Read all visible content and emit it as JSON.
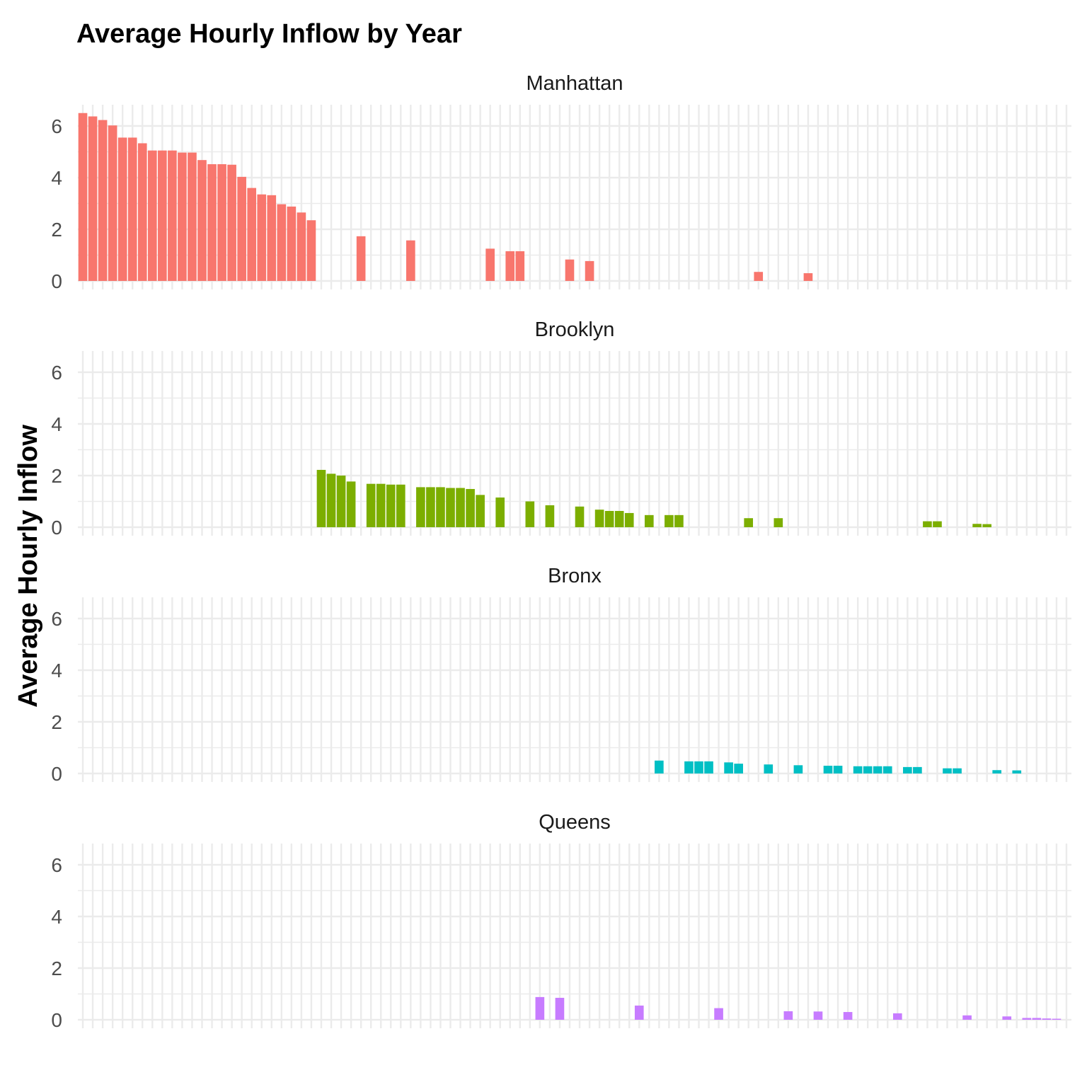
{
  "chart_data": {
    "type": "bar",
    "title": "Average Hourly Inflow by Year",
    "xlabel": "",
    "ylabel": "Average Hourly Inflow",
    "ylim": [
      0,
      6.8
    ],
    "yticks": [
      0,
      2,
      4,
      6
    ],
    "grid": true,
    "legend": "none",
    "x_slot_count": 100,
    "facets": [
      {
        "name": "Manhattan",
        "color": "#F8766D",
        "bars": [
          {
            "i": 0,
            "v": 6.5
          },
          {
            "i": 1,
            "v": 6.37
          },
          {
            "i": 2,
            "v": 6.23
          },
          {
            "i": 3,
            "v": 6.02
          },
          {
            "i": 4,
            "v": 5.55
          },
          {
            "i": 5,
            "v": 5.55
          },
          {
            "i": 6,
            "v": 5.33
          },
          {
            "i": 7,
            "v": 5.05
          },
          {
            "i": 8,
            "v": 5.05
          },
          {
            "i": 9,
            "v": 5.05
          },
          {
            "i": 10,
            "v": 4.97
          },
          {
            "i": 11,
            "v": 4.97
          },
          {
            "i": 12,
            "v": 4.68
          },
          {
            "i": 13,
            "v": 4.52
          },
          {
            "i": 14,
            "v": 4.52
          },
          {
            "i": 15,
            "v": 4.5
          },
          {
            "i": 16,
            "v": 4.03
          },
          {
            "i": 17,
            "v": 3.6
          },
          {
            "i": 18,
            "v": 3.35
          },
          {
            "i": 19,
            "v": 3.32
          },
          {
            "i": 20,
            "v": 2.97
          },
          {
            "i": 21,
            "v": 2.88
          },
          {
            "i": 22,
            "v": 2.65
          },
          {
            "i": 23,
            "v": 2.35
          },
          {
            "i": 28,
            "v": 1.73
          },
          {
            "i": 33,
            "v": 1.57
          },
          {
            "i": 41,
            "v": 1.25
          },
          {
            "i": 43,
            "v": 1.15
          },
          {
            "i": 44,
            "v": 1.15
          },
          {
            "i": 49,
            "v": 0.83
          },
          {
            "i": 51,
            "v": 0.77
          },
          {
            "i": 68,
            "v": 0.35
          },
          {
            "i": 73,
            "v": 0.3
          }
        ]
      },
      {
        "name": "Brooklyn",
        "color": "#7CAE00",
        "bars": [
          {
            "i": 24,
            "v": 2.22
          },
          {
            "i": 25,
            "v": 2.07
          },
          {
            "i": 26,
            "v": 2.0
          },
          {
            "i": 27,
            "v": 1.77
          },
          {
            "i": 29,
            "v": 1.68
          },
          {
            "i": 30,
            "v": 1.68
          },
          {
            "i": 31,
            "v": 1.65
          },
          {
            "i": 32,
            "v": 1.65
          },
          {
            "i": 34,
            "v": 1.55
          },
          {
            "i": 35,
            "v": 1.55
          },
          {
            "i": 36,
            "v": 1.55
          },
          {
            "i": 37,
            "v": 1.52
          },
          {
            "i": 38,
            "v": 1.52
          },
          {
            "i": 39,
            "v": 1.48
          },
          {
            "i": 40,
            "v": 1.25
          },
          {
            "i": 42,
            "v": 1.15
          },
          {
            "i": 45,
            "v": 1.0
          },
          {
            "i": 47,
            "v": 0.85
          },
          {
            "i": 50,
            "v": 0.8
          },
          {
            "i": 52,
            "v": 0.68
          },
          {
            "i": 53,
            "v": 0.63
          },
          {
            "i": 54,
            "v": 0.63
          },
          {
            "i": 55,
            "v": 0.55
          },
          {
            "i": 57,
            "v": 0.47
          },
          {
            "i": 59,
            "v": 0.47
          },
          {
            "i": 60,
            "v": 0.47
          },
          {
            "i": 67,
            "v": 0.35
          },
          {
            "i": 70,
            "v": 0.35
          },
          {
            "i": 85,
            "v": 0.23
          },
          {
            "i": 86,
            "v": 0.23
          },
          {
            "i": 90,
            "v": 0.13
          },
          {
            "i": 91,
            "v": 0.12
          }
        ]
      },
      {
        "name": "Bronx",
        "color": "#00BFC4",
        "bars": [
          {
            "i": 58,
            "v": 0.5
          },
          {
            "i": 61,
            "v": 0.47
          },
          {
            "i": 62,
            "v": 0.47
          },
          {
            "i": 63,
            "v": 0.47
          },
          {
            "i": 65,
            "v": 0.43
          },
          {
            "i": 66,
            "v": 0.38
          },
          {
            "i": 69,
            "v": 0.35
          },
          {
            "i": 72,
            "v": 0.32
          },
          {
            "i": 75,
            "v": 0.3
          },
          {
            "i": 76,
            "v": 0.3
          },
          {
            "i": 78,
            "v": 0.28
          },
          {
            "i": 79,
            "v": 0.28
          },
          {
            "i": 80,
            "v": 0.28
          },
          {
            "i": 81,
            "v": 0.28
          },
          {
            "i": 83,
            "v": 0.25
          },
          {
            "i": 84,
            "v": 0.25
          },
          {
            "i": 87,
            "v": 0.2
          },
          {
            "i": 88,
            "v": 0.2
          },
          {
            "i": 92,
            "v": 0.13
          },
          {
            "i": 94,
            "v": 0.12
          }
        ]
      },
      {
        "name": "Queens",
        "color": "#C77CFF",
        "bars": [
          {
            "i": 46,
            "v": 0.88
          },
          {
            "i": 48,
            "v": 0.85
          },
          {
            "i": 56,
            "v": 0.55
          },
          {
            "i": 64,
            "v": 0.45
          },
          {
            "i": 71,
            "v": 0.33
          },
          {
            "i": 74,
            "v": 0.32
          },
          {
            "i": 77,
            "v": 0.3
          },
          {
            "i": 82,
            "v": 0.25
          },
          {
            "i": 89,
            "v": 0.17
          },
          {
            "i": 93,
            "v": 0.13
          },
          {
            "i": 95,
            "v": 0.07
          },
          {
            "i": 96,
            "v": 0.07
          },
          {
            "i": 97,
            "v": 0.05
          },
          {
            "i": 98,
            "v": 0.04
          }
        ]
      }
    ]
  }
}
